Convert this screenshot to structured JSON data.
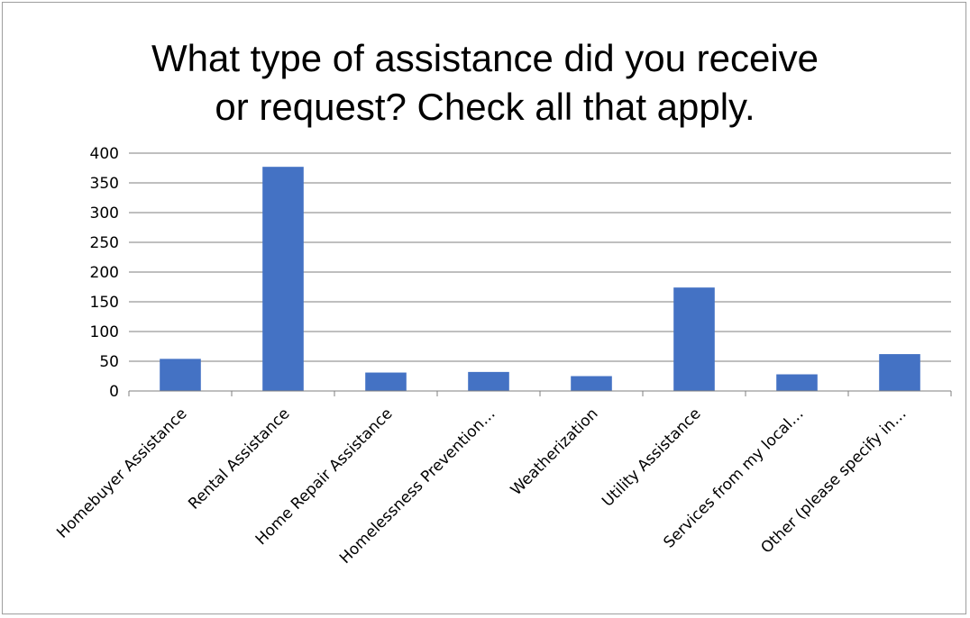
{
  "chart_data": {
    "type": "bar",
    "title_lines": [
      "What type of assistance did you receive",
      "or request?  Check all that apply."
    ],
    "categories": [
      "Homebuyer Assistance",
      "Rental Assistance",
      "Home Repair Assistance",
      "Homelessness Prevention…",
      "Weatherization",
      "Utility Assistance",
      "Services from my local…",
      "Other (please specify in…"
    ],
    "values": [
      54,
      377,
      31,
      32,
      25,
      174,
      28,
      62
    ],
    "y_ticks": [
      "0",
      "50",
      "100",
      "150",
      "200",
      "250",
      "300",
      "350",
      "400"
    ],
    "ylim": [
      0,
      400
    ],
    "grid": true,
    "legend": "none",
    "bar_color": "#4472C4",
    "gridline_color": "#7f7f7f"
  }
}
